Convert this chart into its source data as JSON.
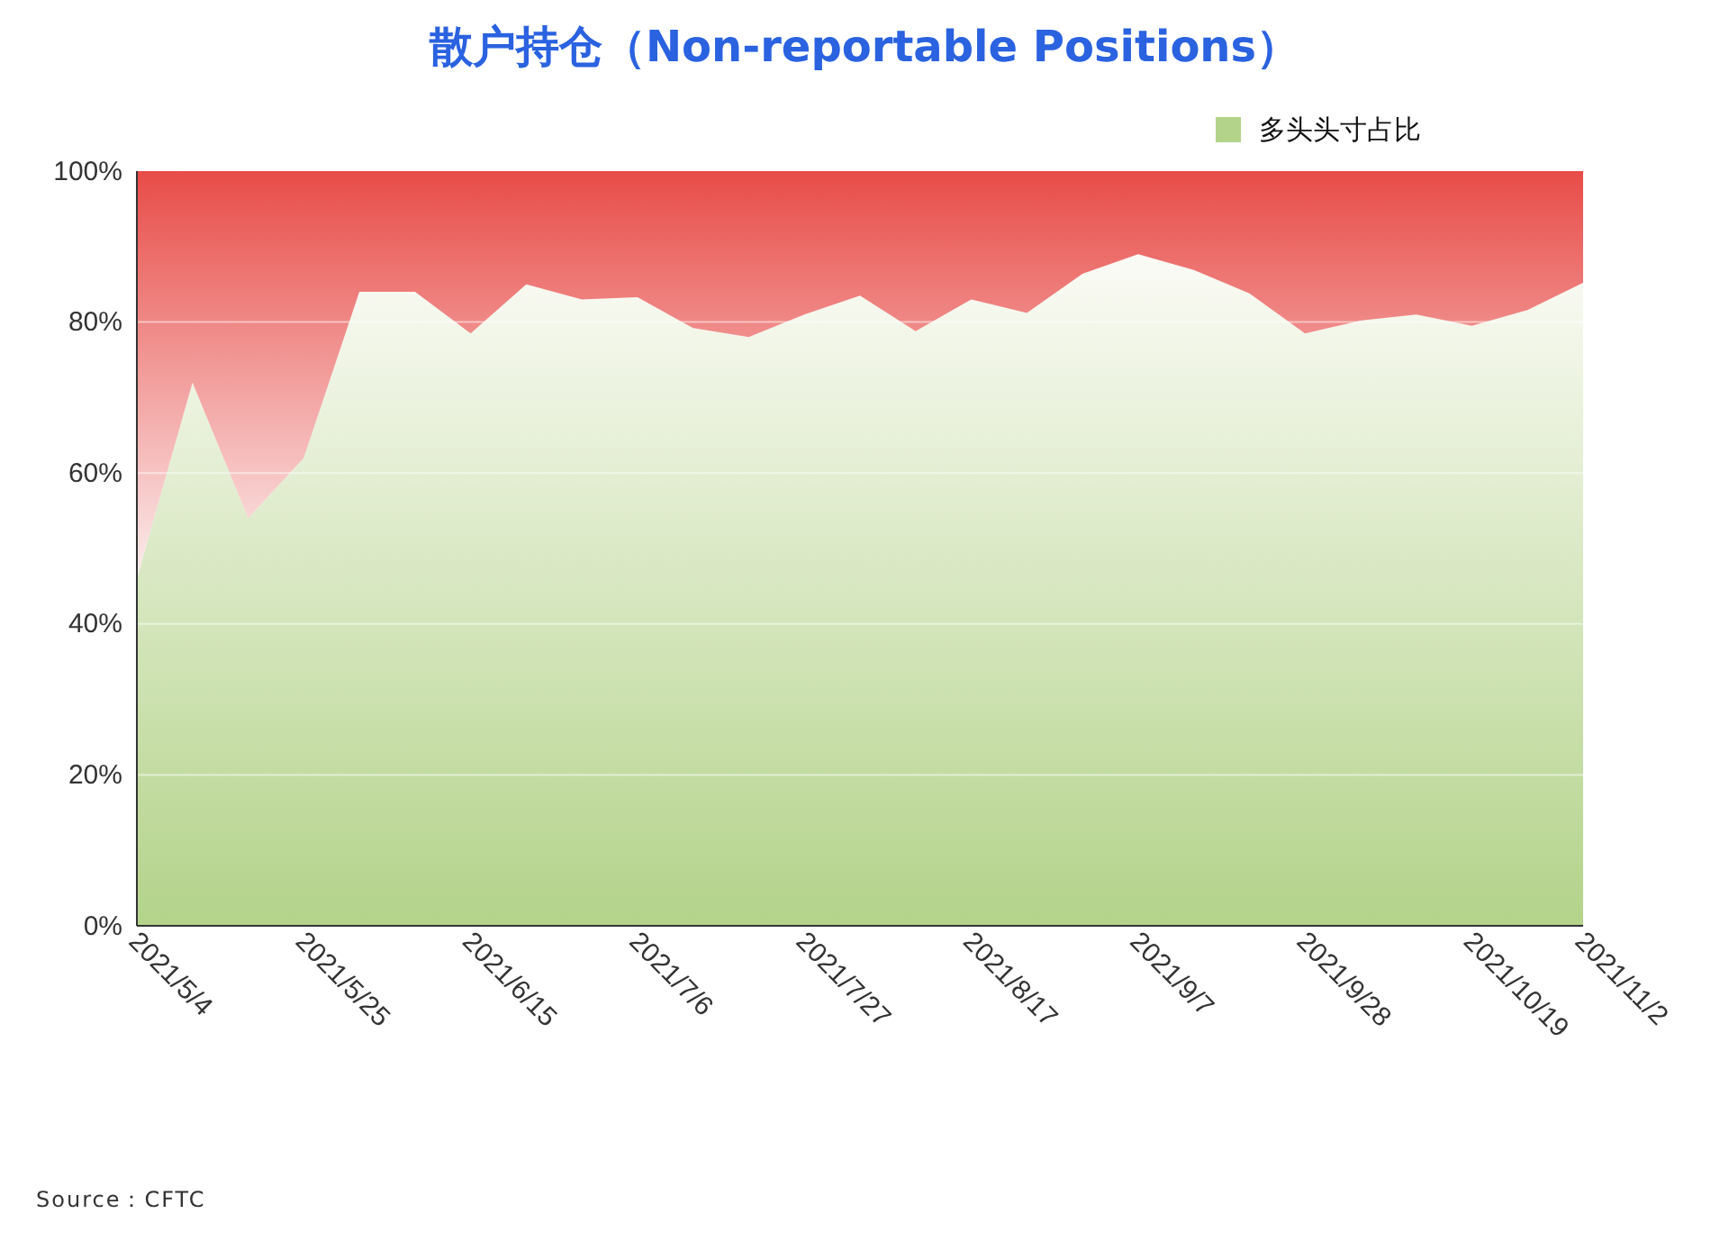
{
  "chart_data": {
    "type": "area",
    "title": "散户持仓（Non-reportable Positions）",
    "stacked": true,
    "x": [
      "2021-05-04",
      "2021-05-11",
      "2021-05-18",
      "2021-05-25",
      "2021-06-01",
      "2021-06-08",
      "2021-06-15",
      "2021-06-22",
      "2021-06-29",
      "2021-07-06",
      "2021-07-13",
      "2021-07-20",
      "2021-07-27",
      "2021-08-03",
      "2021-08-10",
      "2021-08-17",
      "2021-08-24",
      "2021-08-31",
      "2021-09-07",
      "2021-09-14",
      "2021-09-21",
      "2021-09-28",
      "2021-10-05",
      "2021-10-12",
      "2021-10-19",
      "2021-10-26",
      "2021-11-02"
    ],
    "series": [
      {
        "name": "多头头寸占比",
        "color": "#b3d38a",
        "values": [
          46,
          72,
          54,
          62,
          84,
          84,
          78.5,
          85,
          83,
          83.3,
          79.2,
          78,
          81,
          83.5,
          78.8,
          83,
          81.2,
          86.4,
          89,
          86.9,
          83.8,
          78.5,
          80.2,
          81,
          79.5,
          81.6,
          85.2
        ]
      },
      {
        "color": "#e84c48",
        "values": [
          54,
          28,
          46,
          38,
          16,
          16,
          21.5,
          15,
          17,
          16.7,
          20.8,
          22,
          19,
          16.5,
          21.2,
          17,
          18.8,
          13.6,
          11,
          13.1,
          16.2,
          21.5,
          19.8,
          19,
          20.5,
          18.4,
          14.8
        ]
      }
    ],
    "xlim": [
      "2021-05-04",
      "2021-11-02"
    ],
    "xticks": [
      {
        "value": "2021-05-04",
        "label": "2021/5/4"
      },
      {
        "value": "2021-05-25",
        "label": "2021/5/25"
      },
      {
        "value": "2021-06-15",
        "label": "2021/6/15"
      },
      {
        "value": "2021-07-06",
        "label": "2021/7/6"
      },
      {
        "value": "2021-07-27",
        "label": "2021/7/27"
      },
      {
        "value": "2021-08-17",
        "label": "2021/8/17"
      },
      {
        "value": "2021-09-07",
        "label": "2021/9/7"
      },
      {
        "value": "2021-09-28",
        "label": "2021/9/28"
      },
      {
        "value": "2021-10-19",
        "label": "2021/10/19"
      },
      {
        "value": "2021-11-02",
        "label": "2021/11/2"
      }
    ],
    "ylim": [
      0,
      100
    ],
    "yticks": [
      {
        "value": 0,
        "label": "0%"
      },
      {
        "value": 20,
        "label": "20%"
      },
      {
        "value": 40,
        "label": "40%"
      },
      {
        "value": 60,
        "label": "60%"
      },
      {
        "value": 80,
        "label": "80%"
      },
      {
        "value": 100,
        "label": "100%"
      }
    ],
    "grid": "y",
    "legend": "top right",
    "annotations": [
      "Source：CFTC"
    ]
  }
}
